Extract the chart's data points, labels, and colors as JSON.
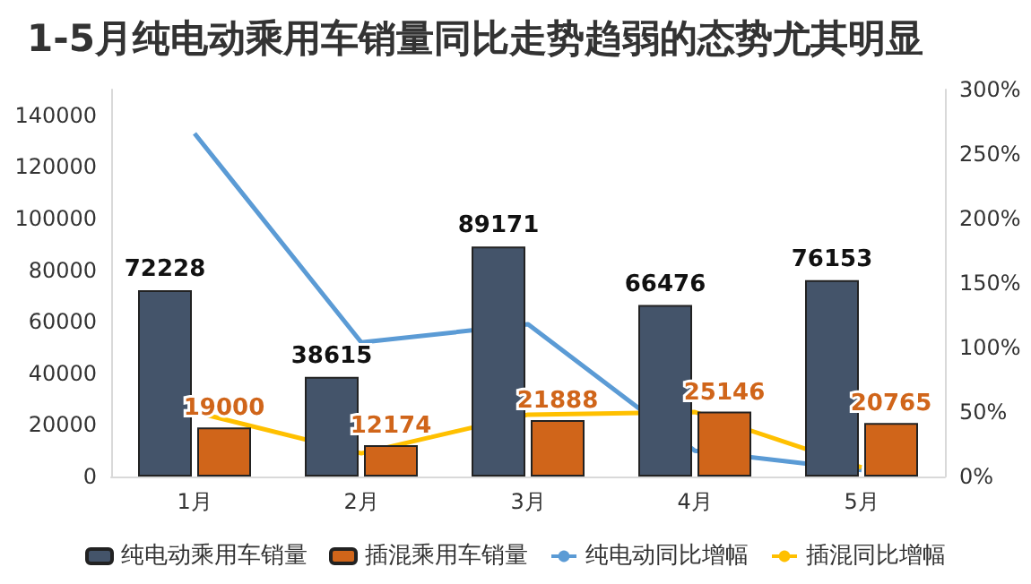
{
  "chart_data": {
    "type": "bar",
    "title": "1-5月纯电动乘用车销量同比走势趋弱的态势尤其明显",
    "categories": [
      "1月",
      "2月",
      "3月",
      "4月",
      "5月"
    ],
    "series": [
      {
        "name": "纯电动乘用车销量",
        "color": "#44546a",
        "values": [
          72228,
          38615,
          89171,
          66476,
          76153
        ],
        "value_labels": [
          "72228",
          "38615",
          "89171",
          "66476",
          "76153"
        ]
      },
      {
        "name": "插混乘用车销量",
        "color": "#d0651a",
        "values": [
          19000,
          12174,
          21888,
          25146,
          20765
        ],
        "value_labels": [
          "19000",
          "12174",
          "21888",
          "25146",
          "20765"
        ]
      },
      {
        "name": "纯电动同比增幅",
        "type": "line",
        "axis": "y2",
        "color": "#5b9bd5",
        "values": [
          266,
          104,
          118,
          20,
          5
        ]
      },
      {
        "name": "插混同比增幅",
        "type": "line",
        "axis": "y2",
        "color": "#ffc000",
        "values": [
          50,
          18,
          48,
          50,
          7
        ]
      }
    ],
    "ylim": [
      0,
      150000
    ],
    "yticks": [
      0,
      20000,
      40000,
      60000,
      80000,
      100000,
      120000,
      140000
    ],
    "y2lim": [
      0,
      300
    ],
    "y2ticks": [
      {
        "value": 0,
        "label": "0%"
      },
      {
        "value": 50,
        "label": "50%"
      },
      {
        "value": 100,
        "label": "100%"
      },
      {
        "value": 150,
        "label": "150%"
      },
      {
        "value": 200,
        "label": "200%"
      },
      {
        "value": 250,
        "label": "250%"
      },
      {
        "value": 300,
        "label": "300%"
      }
    ],
    "grid": false,
    "legend": "bottom",
    "marker": "none",
    "line_style": "solid"
  }
}
